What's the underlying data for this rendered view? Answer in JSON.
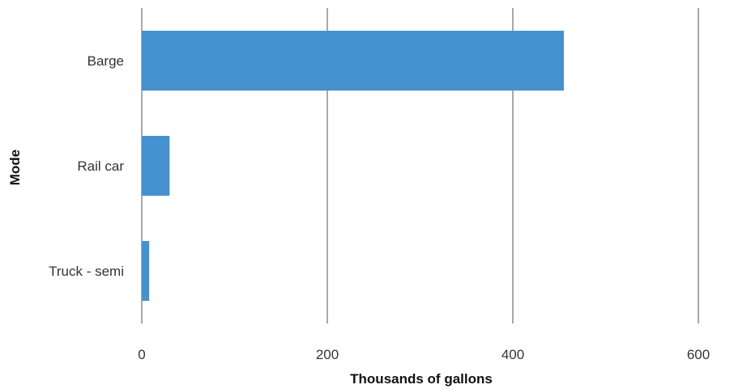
{
  "chart_data": {
    "type": "bar",
    "orientation": "horizontal",
    "categories": [
      "Barge",
      "Rail car",
      "Truck - semi"
    ],
    "values": [
      455,
      30,
      8
    ],
    "xlabel": "Thousands of gallons",
    "ylabel": "Mode",
    "xlim": [
      0,
      600
    ],
    "xticks": [
      0,
      200,
      400,
      600
    ],
    "grid": true,
    "legend": "none",
    "bar_color": "#4592cf"
  }
}
